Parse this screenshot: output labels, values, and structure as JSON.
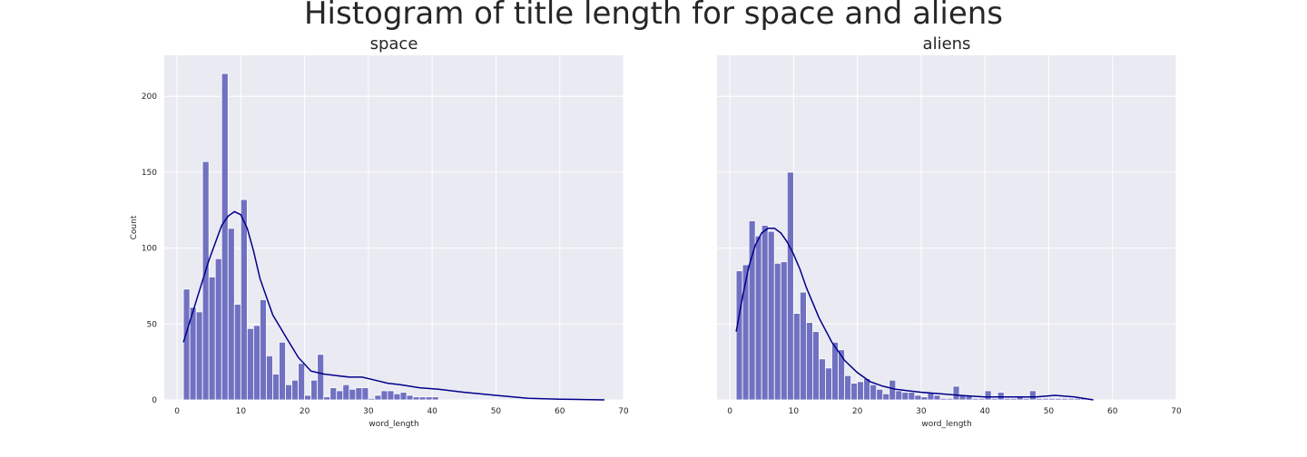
{
  "figure": {
    "title": "Histogram of title length for space and aliens",
    "colors": {
      "bar": "#7171c2",
      "bar_edge": "#ffffff",
      "kde": "#00008b",
      "axes_bg": "#eaeaf2",
      "grid": "#ffffff",
      "text": "#262626"
    }
  },
  "chart_data": [
    {
      "type": "bar",
      "title": "space",
      "xlabel": "word_length",
      "ylabel": "Count",
      "xlim": [
        -2,
        70
      ],
      "ylim": [
        0,
        227
      ],
      "xticks": [
        0,
        10,
        20,
        30,
        40,
        50,
        60,
        70
      ],
      "yticks": [
        0,
        50,
        100,
        150,
        200
      ],
      "grid": true,
      "bin_start": 1,
      "bin_width": 1,
      "counts": [
        73,
        61,
        58,
        157,
        81,
        93,
        215,
        113,
        63,
        132,
        47,
        49,
        66,
        29,
        17,
        38,
        10,
        13,
        24,
        3,
        13,
        30,
        2,
        8,
        6,
        10,
        7,
        8,
        8,
        1,
        3,
        6,
        6,
        4,
        5,
        3,
        2,
        2,
        2,
        2
      ],
      "kde": {
        "x": [
          1,
          3,
          5,
          7,
          8,
          9,
          10,
          11,
          12,
          13,
          15,
          17,
          19,
          21,
          23,
          25,
          27,
          29,
          31,
          33,
          35,
          38,
          41,
          45,
          50,
          55,
          60,
          67
        ],
        "y": [
          38,
          65,
          92,
          115,
          121,
          124,
          122,
          113,
          98,
          80,
          56,
          42,
          28,
          19,
          17,
          16,
          15,
          15,
          13,
          11,
          10,
          8,
          7,
          5,
          3,
          1,
          0.5,
          0
        ]
      }
    },
    {
      "type": "bar",
      "title": "aliens",
      "xlabel": "word_length",
      "ylabel": "",
      "xlim": [
        -2,
        70
      ],
      "ylim": [
        0,
        227
      ],
      "xticks": [
        0,
        10,
        20,
        30,
        40,
        50,
        60,
        70
      ],
      "yticks": [
        0,
        50,
        100,
        150,
        200
      ],
      "grid": true,
      "bin_start": 1,
      "bin_width": 1,
      "counts": [
        85,
        89,
        118,
        108,
        115,
        111,
        90,
        91,
        150,
        57,
        71,
        51,
        45,
        27,
        21,
        38,
        33,
        16,
        11,
        12,
        14,
        10,
        7,
        4,
        13,
        6,
        5,
        5,
        3,
        2,
        5,
        3,
        1,
        1,
        9,
        3,
        3,
        1,
        1,
        6,
        1,
        5,
        1,
        1,
        2,
        1,
        6,
        1,
        1,
        1,
        1,
        1,
        1,
        1,
        1
      ],
      "kde": {
        "x": [
          1,
          2,
          3,
          4,
          5,
          6,
          7,
          8,
          9,
          10,
          11,
          12,
          14,
          16,
          18,
          20,
          22,
          24,
          26,
          28,
          30,
          33,
          36,
          40,
          44,
          48,
          51,
          54,
          57
        ],
        "y": [
          45,
          68,
          88,
          102,
          110,
          113,
          113,
          110,
          104,
          96,
          86,
          74,
          54,
          38,
          26,
          18,
          12,
          9,
          7,
          6,
          5,
          4,
          3,
          2,
          2,
          2,
          3,
          2,
          0
        ]
      }
    }
  ]
}
